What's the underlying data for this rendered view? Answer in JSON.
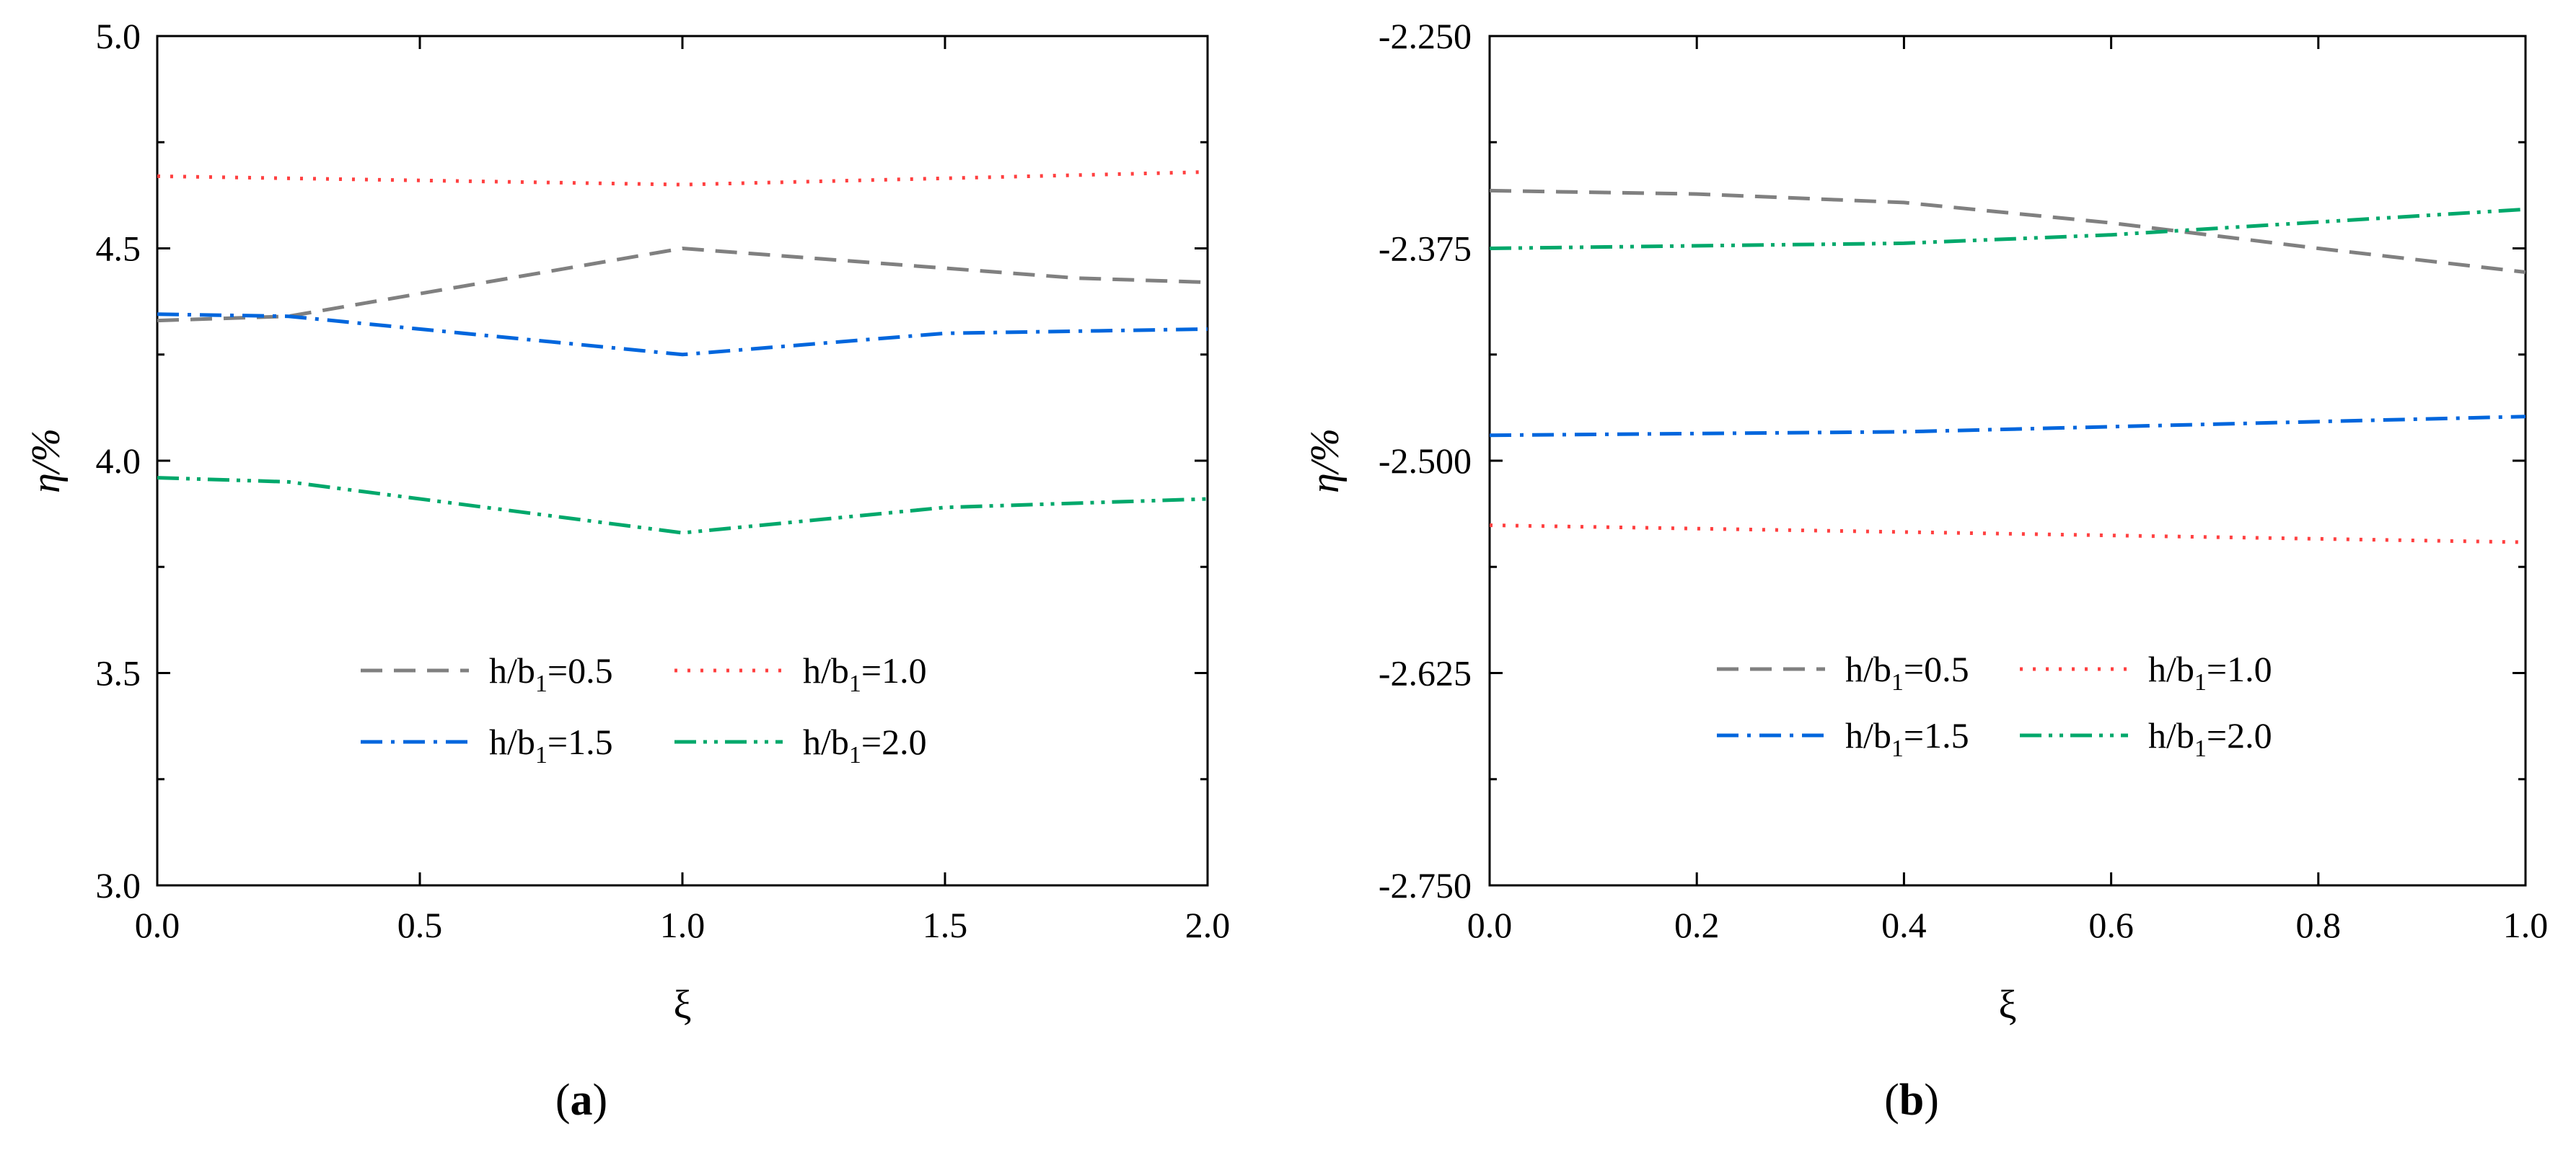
{
  "chart_data": [
    {
      "type": "line",
      "panel": "a",
      "panel_label": "a",
      "xlabel": "ξ",
      "ylabel": "η/%",
      "xlim": [
        0.0,
        2.0
      ],
      "ylim": [
        3.0,
        5.0
      ],
      "xticks": [
        0.0,
        0.5,
        1.0,
        1.5,
        2.0
      ],
      "xtick_labels": [
        "0.0",
        "0.5",
        "1.0",
        "1.5",
        "2.0"
      ],
      "yticks": [
        3.0,
        3.5,
        4.0,
        4.5,
        5.0
      ],
      "ytick_labels": [
        "3.0",
        "3.5",
        "4.0",
        "4.5",
        "5.0"
      ],
      "legend_position": "lower-center",
      "series": [
        {
          "name": "h/b1=0.5",
          "label_main": "h/b",
          "label_sub": "1",
          "label_tail": "=0.5",
          "color": "#808080",
          "dash": "dashed",
          "x": [
            0.0,
            0.25,
            1.0,
            1.75,
            2.0
          ],
          "y": [
            4.33,
            4.34,
            4.5,
            4.43,
            4.42
          ]
        },
        {
          "name": "h/b1=1.0",
          "label_main": "h/b",
          "label_sub": "1",
          "label_tail": "=1.0",
          "color": "#ff4040",
          "dash": "dotted",
          "x": [
            0.0,
            1.0,
            2.0
          ],
          "y": [
            4.67,
            4.65,
            4.68
          ]
        },
        {
          "name": "h/b1=1.5",
          "label_main": "h/b",
          "label_sub": "1",
          "label_tail": "=1.5",
          "color": "#0066dd",
          "dash": "dashdot",
          "x": [
            0.0,
            0.25,
            1.0,
            1.5,
            2.0
          ],
          "y": [
            4.345,
            4.34,
            4.25,
            4.3,
            4.31
          ]
        },
        {
          "name": "h/b1=2.0",
          "label_main": "h/b",
          "label_sub": "1",
          "label_tail": "=2.0",
          "color": "#00a86b",
          "dash": "dashdotdot",
          "x": [
            0.0,
            0.25,
            1.0,
            1.5,
            2.0
          ],
          "y": [
            3.96,
            3.95,
            3.83,
            3.89,
            3.91
          ]
        }
      ]
    },
    {
      "type": "line",
      "panel": "b",
      "panel_label": "b",
      "xlabel": "ξ",
      "ylabel": "η/%",
      "xlim": [
        0.0,
        1.0
      ],
      "ylim": [
        -2.75,
        -2.25
      ],
      "xticks": [
        0.0,
        0.2,
        0.4,
        0.6,
        0.8,
        1.0
      ],
      "xtick_labels": [
        "0.0",
        "0.2",
        "0.4",
        "0.6",
        "0.8",
        "1.0"
      ],
      "yticks": [
        -2.75,
        -2.625,
        -2.5,
        -2.375,
        -2.25
      ],
      "ytick_labels": [
        "-2.750",
        "-2.625",
        "-2.500",
        "-2.375",
        "-2.250"
      ],
      "legend_position": "lower-center",
      "series": [
        {
          "name": "h/b1=0.5",
          "label_main": "h/b",
          "label_sub": "1",
          "label_tail": "=0.5",
          "color": "#808080",
          "dash": "dashed",
          "x": [
            0.0,
            0.2,
            0.4,
            0.6,
            0.8,
            1.0
          ],
          "y": [
            -2.341,
            -2.343,
            -2.348,
            -2.36,
            -2.375,
            -2.389
          ]
        },
        {
          "name": "h/b1=1.0",
          "label_main": "h/b",
          "label_sub": "1",
          "label_tail": "=1.0",
          "color": "#ff4040",
          "dash": "dotted",
          "x": [
            0.0,
            1.0
          ],
          "y": [
            -2.538,
            -2.548
          ]
        },
        {
          "name": "h/b1=1.5",
          "label_main": "h/b",
          "label_sub": "1",
          "label_tail": "=1.5",
          "color": "#0066dd",
          "dash": "dashdot",
          "x": [
            0.0,
            0.4,
            1.0
          ],
          "y": [
            -2.485,
            -2.483,
            -2.474
          ]
        },
        {
          "name": "h/b1=2.0",
          "label_main": "h/b",
          "label_sub": "1",
          "label_tail": "=2.0",
          "color": "#00a86b",
          "dash": "dashdotdot",
          "x": [
            0.0,
            0.4,
            0.6,
            1.0
          ],
          "y": [
            -2.375,
            -2.372,
            -2.367,
            -2.352
          ]
        }
      ]
    }
  ]
}
